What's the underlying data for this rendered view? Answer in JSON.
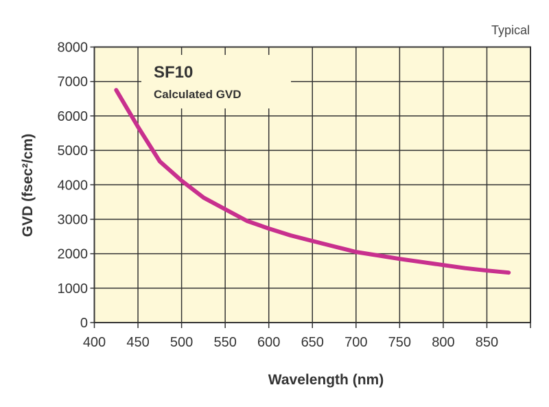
{
  "chart_data": {
    "type": "line",
    "title": "SF10",
    "subtitle": "Calculated GVD",
    "note": "Typical",
    "xlabel": "Wavelength (nm)",
    "ylabel": "GVD (fsec²/cm)",
    "xlim": [
      400,
      900
    ],
    "ylim": [
      0,
      8000
    ],
    "xticks": [
      400,
      450,
      500,
      550,
      600,
      650,
      700,
      750,
      800,
      850
    ],
    "yticks": [
      0,
      1000,
      2000,
      3000,
      4000,
      5000,
      6000,
      7000,
      8000
    ],
    "grid": true,
    "colors": {
      "background": "#fef9d8",
      "line": "#c8308e",
      "grid": "#333333"
    },
    "series": [
      {
        "x": [
          425,
          450,
          475,
          500,
          525,
          550,
          575,
          600,
          625,
          650,
          675,
          700,
          725,
          750,
          775,
          800,
          825,
          850,
          875
        ],
        "y": [
          6750,
          5680,
          4680,
          4120,
          3630,
          3290,
          2950,
          2730,
          2530,
          2370,
          2210,
          2050,
          1950,
          1850,
          1760,
          1670,
          1580,
          1510,
          1450
        ]
      }
    ]
  }
}
